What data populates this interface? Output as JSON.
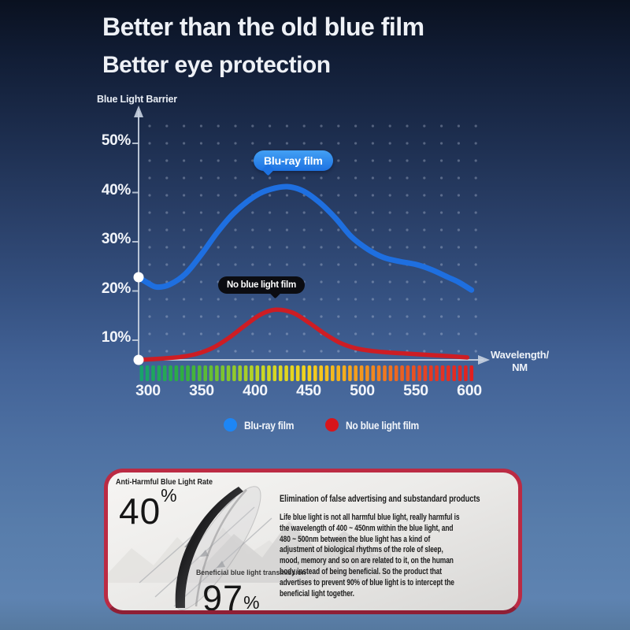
{
  "header": {
    "title_line1": "Better than the old blue film",
    "title_line2": "Better eye protection"
  },
  "chart": {
    "y_axis_title": "Blue Light Barrier",
    "x_axis_title_line1": "Wavelength/",
    "x_axis_title_line2": "NM",
    "y_ticks": [
      "50%",
      "40%",
      "30%",
      "20%",
      "10%"
    ],
    "x_ticks": [
      "300",
      "350",
      "400",
      "450",
      "500",
      "550",
      "600"
    ],
    "callout_blue": "Blu-ray film",
    "callout_black": "No blue light film",
    "legend": [
      {
        "label": "Blu-ray film",
        "color": "#1d86f5"
      },
      {
        "label": "No blue light film",
        "color": "#d8151b"
      }
    ],
    "spectrum_colors": [
      "#18a26b",
      "#2fae3f",
      "#7fc52f",
      "#cdd824",
      "#f4d41e",
      "#f4a91e",
      "#ee7220",
      "#e63a23",
      "#e2201f"
    ]
  },
  "chart_data": {
    "type": "line",
    "title": "",
    "xlabel": "Wavelength/NM",
    "ylabel": "Blue Light Barrier",
    "x_unit": "nm",
    "ylim": [
      0,
      55
    ],
    "y_tick_values": [
      10,
      20,
      30,
      40,
      50
    ],
    "x_tick_values": [
      300,
      350,
      400,
      450,
      500,
      550,
      600
    ],
    "grid": "dotted",
    "series": [
      {
        "name": "Blu-ray film",
        "color": "#1e6fe0",
        "x": [
          291,
          300,
          308,
          320,
          335,
          350,
          365,
          380,
          400,
          415,
          430,
          445,
          460,
          475,
          490,
          505,
          520,
          535,
          550,
          565,
          580,
          590,
          602
        ],
        "values": [
          22.8,
          21.6,
          20.8,
          21.3,
          23.5,
          27.5,
          32,
          35.8,
          39.3,
          40.7,
          41.2,
          40.3,
          38,
          34.8,
          31,
          28.5,
          26.8,
          26,
          25.4,
          24.3,
          22.8,
          21.8,
          20.2
        ]
      },
      {
        "name": "No blue light film",
        "color": "#cd1d24",
        "x": [
          291,
          300,
          315,
          330,
          345,
          360,
          375,
          390,
          405,
          419,
          435,
          450,
          465,
          480,
          495,
          510,
          525,
          540,
          555,
          570,
          585,
          598
        ],
        "values": [
          6,
          6.1,
          6.3,
          6.6,
          7.2,
          8.4,
          10.4,
          12.9,
          15.2,
          16.2,
          15.6,
          13.6,
          11.3,
          9.4,
          8.3,
          7.8,
          7.5,
          7.3,
          7.1,
          6.9,
          6.7,
          6.5
        ]
      }
    ]
  },
  "card": {
    "anti_label": "Anti-Harmful Blue Light Rate",
    "anti_value": "40",
    "anti_unit": "%",
    "beneficial_label": "Beneficial blue light transmission",
    "beneficial_value": "97",
    "beneficial_unit": "%",
    "heading": "Elimination of false advertising and substandard products",
    "body_lines": [
      "Life blue light is not all harmful blue light, really harmful is",
      "the wavelength of 400 ~ 450nm within the blue light, and",
      "480 ~ 500nm between the blue light has a kind of",
      "adjustment of biological rhythms of the role of sleep,",
      "mood, memory and so on are related to it, on the human",
      "body instead of being beneficial. So the product that",
      "advertises to prevent 90% of blue light is to intercept the",
      "beneficial light together."
    ]
  }
}
